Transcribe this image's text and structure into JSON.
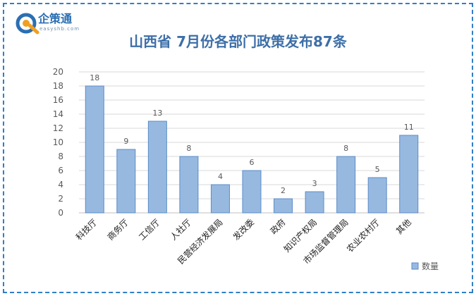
{
  "brand": {
    "name": "企策通",
    "sub": "easyshb.com"
  },
  "colors": {
    "bar_fill": "#97b9e0",
    "bar_stroke": "#5b8cc6",
    "title": "#3d6fa8",
    "frame": "#2f7fc7",
    "grid": "#d9d9d9"
  },
  "chart_data": {
    "type": "bar",
    "title": "山西省 7月份各部门政策发布87条",
    "xlabel": "",
    "ylabel": "",
    "ylim": [
      0,
      20
    ],
    "yticks": [
      0,
      2,
      4,
      6,
      8,
      10,
      12,
      14,
      16,
      18,
      20
    ],
    "categories": [
      "科技厅",
      "商务厅",
      "工信厅",
      "人社厅",
      "民营经济发展局",
      "发改委",
      "政府",
      "知识产权局",
      "市场监督管理局",
      "农业农村厅",
      "其他"
    ],
    "series": [
      {
        "name": "数量",
        "values": [
          18,
          9,
          13,
          8,
          4,
          6,
          2,
          3,
          8,
          5,
          11
        ]
      }
    ],
    "grid": true,
    "legend": "bottom-right"
  }
}
